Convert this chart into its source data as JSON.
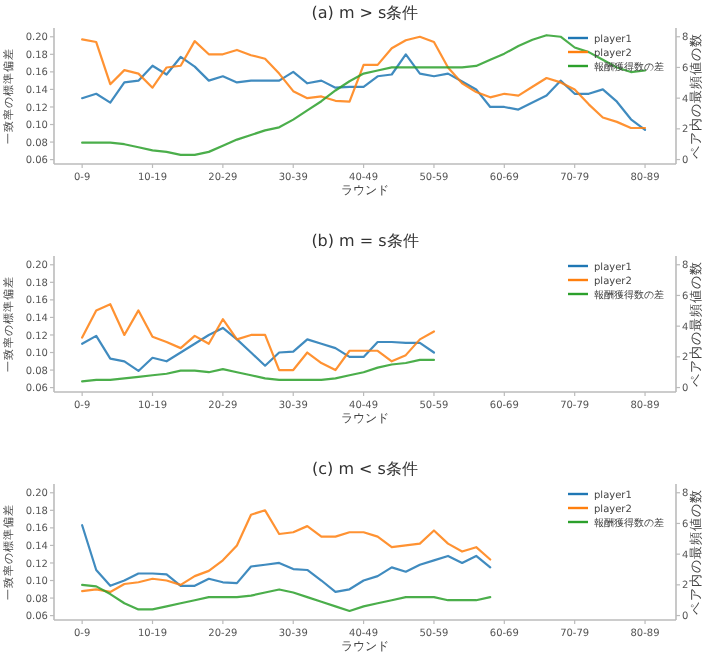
{
  "chart_data": [
    {
      "type": "line",
      "title": "(a) m > s条件",
      "xlabel": "ラウンド",
      "ylabel": "一致率の標準偏差",
      "y2label": "ペア内の最頻値の数",
      "legend": "top right",
      "categories": [
        "0-9",
        null,
        null,
        null,
        null,
        "10-19",
        null,
        null,
        null,
        null,
        "20-29",
        null,
        null,
        null,
        null,
        "30-39",
        null,
        null,
        null,
        null,
        "40-49",
        null,
        null,
        null,
        null,
        "50-59",
        null,
        null,
        null,
        null,
        "60-69",
        null,
        null,
        null,
        null,
        "70-79",
        null,
        null,
        null,
        null,
        "80-89"
      ],
      "ylim": [
        0.055,
        0.21
      ],
      "yticks": [
        {
          "value": 0.06,
          "label": "0.06"
        },
        {
          "value": 0.08,
          "label": "0.08"
        },
        {
          "value": 0.1,
          "label": "0.10"
        },
        {
          "value": 0.12,
          "label": "0.12"
        },
        {
          "value": 0.14,
          "label": "0.14"
        },
        {
          "value": 0.16,
          "label": "0.16"
        },
        {
          "value": 0.18,
          "label": "0.18"
        },
        {
          "value": 0.2,
          "label": "0.20"
        }
      ],
      "y2lim": [
        -0.29,
        8.57
      ],
      "y2ticks": [
        0,
        2,
        4,
        6,
        8
      ],
      "series": [
        {
          "name": "player1",
          "color": "#1f77b4",
          "values": [
            0.13,
            0.135,
            0.125,
            0.148,
            0.15,
            0.167,
            0.157,
            0.177,
            0.166,
            0.15,
            0.155,
            0.148,
            0.15,
            0.15,
            0.15,
            0.16,
            0.147,
            0.15,
            0.142,
            0.143,
            0.143,
            0.155,
            0.157,
            0.18,
            0.158,
            0.155,
            0.158,
            0.149,
            0.14,
            0.12,
            0.12,
            0.117,
            0.125,
            0.133,
            0.15,
            0.135,
            0.135,
            0.14,
            0.126,
            0.106,
            0.094
          ]
        },
        {
          "name": "player2",
          "color": "#ff7f0e",
          "values": [
            0.197,
            0.194,
            0.146,
            0.162,
            0.158,
            0.142,
            0.165,
            0.167,
            0.195,
            0.18,
            0.18,
            0.185,
            0.179,
            0.175,
            0.158,
            0.138,
            0.13,
            0.132,
            0.127,
            0.126,
            0.168,
            0.168,
            0.187,
            0.196,
            0.2,
            0.194,
            0.165,
            0.147,
            0.137,
            0.131,
            0.135,
            0.133,
            0.143,
            0.153,
            0.148,
            0.14,
            0.123,
            0.108,
            0.103,
            0.096,
            0.096
          ]
        },
        {
          "name": "報酬獲得数の差",
          "color": "#2ca02c",
          "axis": "y2",
          "values": [
            1.1,
            1.1,
            1.1,
            1.0,
            0.8,
            0.6,
            0.5,
            0.3,
            0.3,
            0.5,
            0.9,
            1.3,
            1.6,
            1.9,
            2.1,
            2.6,
            3.2,
            3.8,
            4.5,
            5.1,
            5.6,
            5.8,
            6.0,
            6.0,
            6.0,
            6.0,
            6.0,
            6.0,
            6.1,
            6.5,
            6.9,
            7.4,
            7.8,
            8.1,
            8.0,
            7.3,
            7.0,
            6.5,
            6.0,
            5.7,
            5.8
          ]
        }
      ]
    },
    {
      "type": "line",
      "title": "(b) m = s条件",
      "xlabel": "ラウンド",
      "ylabel": "一致率の標準偏差",
      "y2label": "ペア内の最頻値の数",
      "legend": "top right",
      "categories": [
        "0-9",
        null,
        null,
        null,
        null,
        "10-19",
        null,
        null,
        null,
        null,
        "20-29",
        null,
        null,
        null,
        null,
        "30-39",
        null,
        null,
        null,
        null,
        "40-49",
        null,
        null,
        null,
        null,
        "50-59",
        null,
        null,
        null,
        null,
        "60-69",
        null,
        null,
        null,
        null,
        "70-79",
        null,
        null,
        null,
        null,
        "80-89"
      ],
      "ylim": [
        0.055,
        0.21
      ],
      "yticks": [
        {
          "value": 0.06,
          "label": "0.06"
        },
        {
          "value": 0.08,
          "label": "0.08"
        },
        {
          "value": 0.1,
          "label": "0.10"
        },
        {
          "value": 0.12,
          "label": "0.12"
        },
        {
          "value": 0.14,
          "label": "0.14"
        },
        {
          "value": 0.16,
          "label": "0.16"
        },
        {
          "value": 0.18,
          "label": "0.18"
        },
        {
          "value": 0.2,
          "label": "0.20"
        }
      ],
      "y2lim": [
        -0.29,
        8.57
      ],
      "y2ticks": [
        0,
        2,
        4,
        6,
        8
      ],
      "series": [
        {
          "name": "player1",
          "color": "#1f77b4",
          "values": [
            0.11,
            0.119,
            0.093,
            0.09,
            0.079,
            0.094,
            0.09,
            0.1,
            0.11,
            0.12,
            0.128,
            0.115,
            0.1,
            0.085,
            0.1,
            0.101,
            0.115,
            0.11,
            0.105,
            0.095,
            0.095,
            0.112,
            0.112,
            0.111,
            0.111,
            0.1,
            null,
            null,
            null,
            null,
            null,
            null,
            null,
            null,
            null,
            null,
            null,
            null,
            null,
            null,
            null
          ]
        },
        {
          "name": "player2",
          "color": "#ff7f0e",
          "values": [
            0.117,
            0.148,
            0.155,
            0.12,
            0.148,
            0.118,
            0.112,
            0.105,
            0.119,
            0.11,
            0.138,
            0.115,
            0.12,
            0.12,
            0.08,
            0.08,
            0.1,
            0.088,
            0.08,
            0.102,
            0.102,
            0.102,
            0.09,
            0.097,
            0.115,
            0.124,
            null,
            null,
            null,
            null,
            null,
            null,
            null,
            null,
            null,
            null,
            null,
            null,
            null,
            null,
            null
          ]
        },
        {
          "name": "報酬獲得数の差",
          "color": "#2ca02c",
          "axis": "y2",
          "values": [
            0.4,
            0.5,
            0.5,
            0.6,
            0.7,
            0.8,
            0.9,
            1.1,
            1.1,
            1.0,
            1.2,
            1.0,
            0.8,
            0.6,
            0.5,
            0.5,
            0.5,
            0.5,
            0.6,
            0.8,
            1.0,
            1.3,
            1.5,
            1.6,
            1.8,
            1.8,
            null,
            null,
            null,
            null,
            null,
            null,
            null,
            null,
            null,
            null,
            null,
            null,
            null,
            null,
            null
          ]
        }
      ]
    },
    {
      "type": "line",
      "title": "(c) m < s条件",
      "xlabel": "ラウンド",
      "ylabel": "一致率の標準偏差",
      "y2label": "ペア内の最頻値の数",
      "legend": "top right",
      "categories": [
        "0-9",
        null,
        null,
        null,
        null,
        "10-19",
        null,
        null,
        null,
        null,
        "20-29",
        null,
        null,
        null,
        null,
        "30-39",
        null,
        null,
        null,
        null,
        "40-49",
        null,
        null,
        null,
        null,
        "50-59",
        null,
        null,
        null,
        null,
        "60-69",
        null,
        null,
        null,
        null,
        "70-79",
        null,
        null,
        null,
        null,
        "80-89"
      ],
      "ylim": [
        0.055,
        0.21
      ],
      "yticks": [
        {
          "value": 0.06,
          "label": "0.06"
        },
        {
          "value": 0.08,
          "label": "0.08"
        },
        {
          "value": 0.1,
          "label": "0.10"
        },
        {
          "value": 0.12,
          "label": "0.12"
        },
        {
          "value": 0.14,
          "label": "0.14"
        },
        {
          "value": 0.16,
          "label": "0.16"
        },
        {
          "value": 0.18,
          "label": "0.18"
        },
        {
          "value": 0.2,
          "label": "0.20"
        }
      ],
      "y2lim": [
        -0.29,
        8.57
      ],
      "y2ticks": [
        0,
        2,
        4,
        6,
        8
      ],
      "series": [
        {
          "name": "player1",
          "color": "#1f77b4",
          "values": [
            0.163,
            0.112,
            0.094,
            0.1,
            0.108,
            0.108,
            0.107,
            0.094,
            0.094,
            0.102,
            0.098,
            0.097,
            0.116,
            0.118,
            0.12,
            0.113,
            0.112,
            0.1,
            0.087,
            0.09,
            0.1,
            0.105,
            0.115,
            0.11,
            0.118,
            0.123,
            0.128,
            0.12,
            0.128,
            0.115,
            null,
            null,
            null,
            null,
            null,
            null,
            null,
            null,
            null,
            null,
            null
          ]
        },
        {
          "name": "player2",
          "color": "#ff7f0e",
          "values": [
            0.088,
            0.09,
            0.087,
            0.096,
            0.098,
            0.102,
            0.1,
            0.095,
            0.105,
            0.111,
            0.123,
            0.14,
            0.175,
            0.18,
            0.153,
            0.155,
            0.162,
            0.15,
            0.15,
            0.155,
            0.155,
            0.15,
            0.138,
            0.14,
            0.142,
            0.157,
            0.142,
            0.133,
            0.138,
            0.124,
            null,
            null,
            null,
            null,
            null,
            null,
            null,
            null,
            null,
            null,
            null
          ]
        },
        {
          "name": "報酬獲得数の差",
          "color": "#2ca02c",
          "axis": "y2",
          "values": [
            2.0,
            1.9,
            1.4,
            0.8,
            0.4,
            0.4,
            0.6,
            0.8,
            1.0,
            1.2,
            1.2,
            1.2,
            1.3,
            1.5,
            1.7,
            1.5,
            1.2,
            0.9,
            0.6,
            0.3,
            0.6,
            0.8,
            1.0,
            1.2,
            1.2,
            1.2,
            1.0,
            1.0,
            1.0,
            1.2,
            null,
            null,
            null,
            null,
            null,
            null,
            null,
            null,
            null,
            null,
            null
          ]
        }
      ]
    }
  ]
}
